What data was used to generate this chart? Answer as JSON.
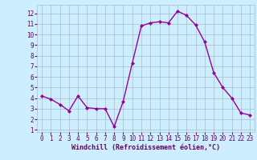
{
  "x": [
    0,
    1,
    2,
    3,
    4,
    5,
    6,
    7,
    8,
    9,
    10,
    11,
    12,
    13,
    14,
    15,
    16,
    17,
    18,
    19,
    20,
    21,
    22,
    23
  ],
  "y": [
    4.2,
    3.9,
    3.4,
    2.8,
    4.2,
    3.1,
    3.0,
    3.0,
    1.3,
    3.7,
    7.3,
    10.8,
    11.1,
    11.2,
    11.1,
    12.2,
    11.8,
    10.9,
    9.3,
    6.4,
    5.0,
    4.0,
    2.6,
    2.4
  ],
  "line_color": "#990099",
  "marker": "D",
  "markersize": 2.0,
  "linewidth": 1.0,
  "bg_color": "#cceeff",
  "grid_color": "#aabbcc",
  "xlabel": "Windchill (Refroidissement éolien,°C)",
  "xlabel_color": "#660066",
  "tick_color": "#660066",
  "xlim": [
    -0.5,
    23.5
  ],
  "ylim": [
    0.8,
    12.8
  ],
  "yticks": [
    1,
    2,
    3,
    4,
    5,
    6,
    7,
    8,
    9,
    10,
    11,
    12
  ],
  "xticks": [
    0,
    1,
    2,
    3,
    4,
    5,
    6,
    7,
    8,
    9,
    10,
    11,
    12,
    13,
    14,
    15,
    16,
    17,
    18,
    19,
    20,
    21,
    22,
    23
  ],
  "tick_fontsize": 5.5,
  "xlabel_fontsize": 6.0
}
